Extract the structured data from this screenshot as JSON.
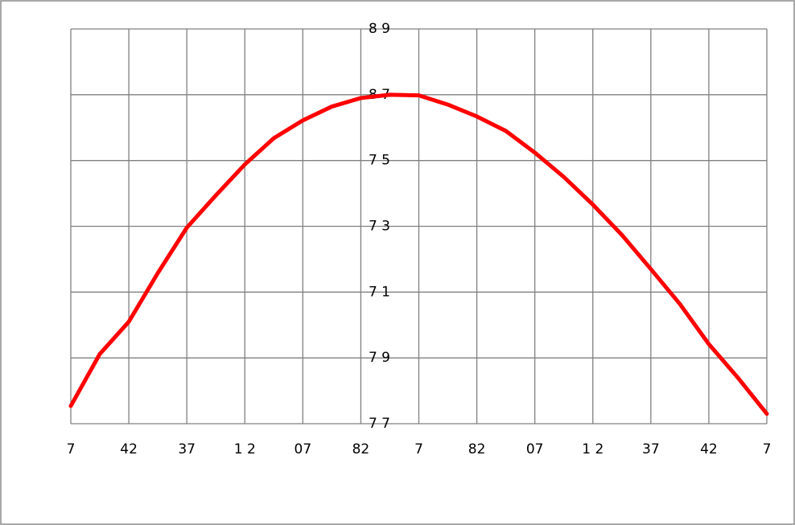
{
  "chart_data": {
    "type": "line",
    "x": [
      0,
      0.5,
      1,
      1.5,
      2,
      2.5,
      3,
      3.5,
      4,
      4.5,
      5,
      5.5,
      6,
      6.5,
      7,
      7.5,
      8,
      8.5,
      9,
      9.5,
      10,
      10.5,
      11,
      11.5,
      12
    ],
    "series": [
      {
        "color": "#ff0000",
        "values": [
          0.27,
          1.06,
          1.55,
          2.29,
          2.98,
          3.47,
          3.94,
          4.34,
          4.61,
          4.82,
          4.95,
          5.0,
          4.99,
          4.85,
          4.67,
          4.45,
          4.12,
          3.75,
          3.33,
          2.87,
          2.35,
          1.82,
          1.21,
          0.7,
          0.15
        ]
      }
    ],
    "xlim": [
      0,
      12
    ],
    "xticks": [
      {
        "value": 0,
        "label": "7"
      },
      {
        "value": 1,
        "label": "42"
      },
      {
        "value": 2,
        "label": "37"
      },
      {
        "value": 3,
        "label": "1 2"
      },
      {
        "value": 4,
        "label": "07"
      },
      {
        "value": 5,
        "label": "82"
      },
      {
        "value": 6,
        "label": "7"
      },
      {
        "value": 7,
        "label": "82"
      },
      {
        "value": 8,
        "label": "07"
      },
      {
        "value": 9,
        "label": "1 2"
      },
      {
        "value": 10,
        "label": "37"
      },
      {
        "value": 11,
        "label": "42"
      },
      {
        "value": 12,
        "label": "7"
      }
    ],
    "ylim": [
      0,
      6
    ],
    "yticks": [
      {
        "value": 0,
        "label": "7 7"
      },
      {
        "value": 1,
        "label": "7 9"
      },
      {
        "value": 2,
        "label": "7 1"
      },
      {
        "value": 3,
        "label": "7 3"
      },
      {
        "value": 4,
        "label": "7 5"
      },
      {
        "value": 5,
        "label": "8 7"
      },
      {
        "value": 6,
        "label": "8 9"
      }
    ],
    "grid": true
  }
}
